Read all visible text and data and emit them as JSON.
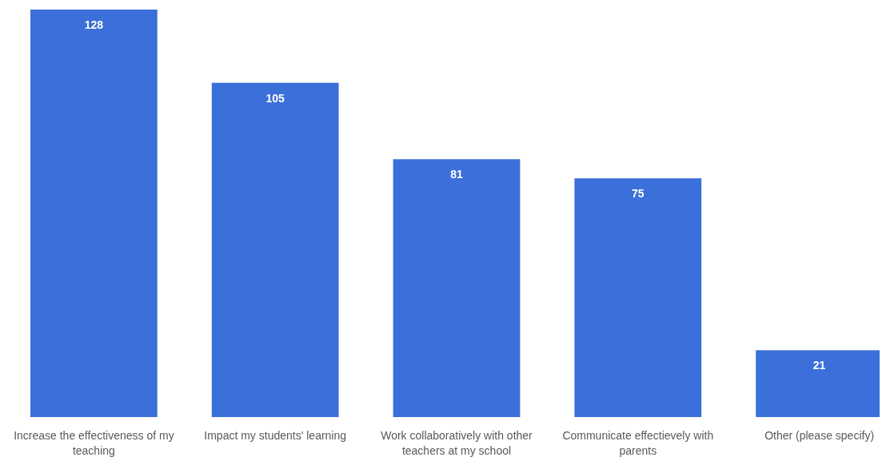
{
  "chart_data": {
    "type": "bar",
    "categories": [
      "Increase the effectiveness of my teaching",
      "Impact my students' learning",
      "Work collaboratively with other teachers at my school",
      "Communicate effectievely with parents",
      "Other (please specify)"
    ],
    "values": [
      128,
      105,
      81,
      75,
      21
    ],
    "color": "#3b6fd9",
    "data_labels": true
  }
}
